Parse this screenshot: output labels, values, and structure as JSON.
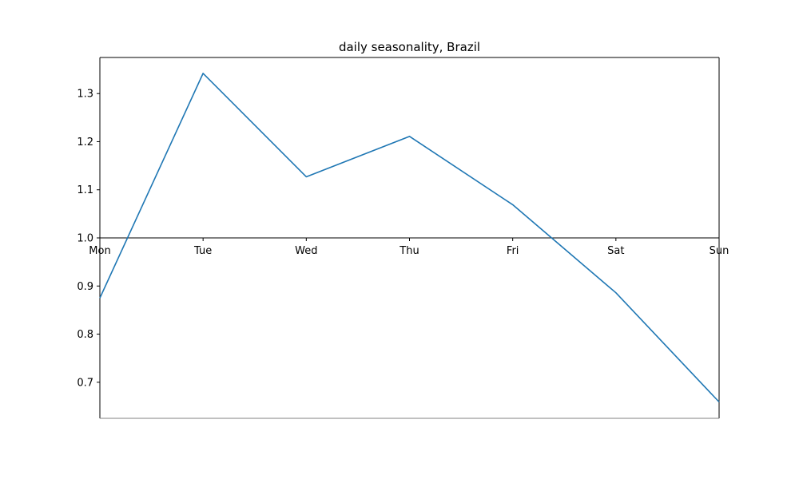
{
  "chart_data": {
    "type": "line",
    "title": "daily seasonality, Brazil",
    "xlabel": "",
    "ylabel": "",
    "categories": [
      "Mon",
      "Tue",
      "Wed",
      "Thu",
      "Fri",
      "Sat",
      "Sun"
    ],
    "series": [
      {
        "values": [
          0.875,
          1.342,
          1.127,
          1.211,
          1.069,
          0.886,
          0.659
        ],
        "color": "#1f77b4"
      }
    ],
    "ylim": [
      0.625,
      1.375
    ],
    "yticks": [
      0.7,
      0.8,
      0.9,
      1.0,
      1.1,
      1.2,
      1.3
    ],
    "ytick_labels": [
      "0.7",
      "0.8",
      "0.9",
      "1.0",
      "1.1",
      "1.2",
      "1.3"
    ],
    "x_axis_at": 1.0,
    "grid": false,
    "legend": "none"
  }
}
